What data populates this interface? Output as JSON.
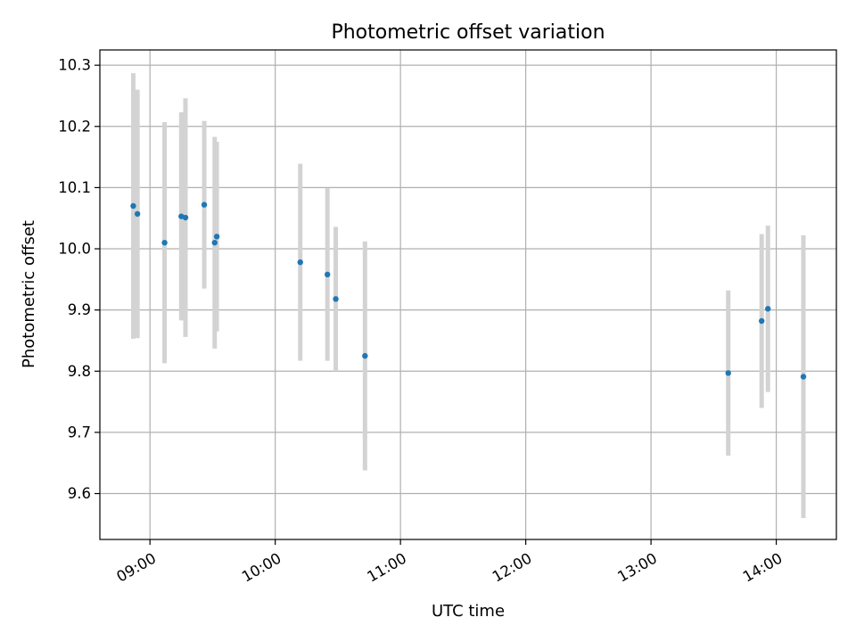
{
  "chart_data": {
    "type": "scatter",
    "title": "Photometric offset variation",
    "xlabel": "UTC time",
    "ylabel": "Photometric offset",
    "x_ticks": [
      "09:00",
      "10:00",
      "11:00",
      "12:00",
      "13:00",
      "14:00"
    ],
    "x_tick_hours": [
      9,
      10,
      11,
      12,
      13,
      14
    ],
    "y_ticks": [
      "9.6",
      "9.7",
      "9.8",
      "9.9",
      "10.0",
      "10.1",
      "10.2",
      "10.3"
    ],
    "y_tick_values": [
      9.6,
      9.7,
      9.8,
      9.9,
      10.0,
      10.1,
      10.2,
      10.3
    ],
    "xlim_hours": [
      8.6,
      14.48
    ],
    "ylim": [
      9.525,
      10.325
    ],
    "grid": true,
    "point_color": "#1f77b4",
    "errorbar_color": "#d3d3d3",
    "points": [
      {
        "time": "08:52",
        "y": 10.07,
        "err": 0.217
      },
      {
        "time": "08:54",
        "y": 10.057,
        "err": 0.203
      },
      {
        "time": "09:07",
        "y": 10.01,
        "err": 0.197
      },
      {
        "time": "09:15",
        "y": 10.053,
        "err": 0.17
      },
      {
        "time": "09:17",
        "y": 10.051,
        "err": 0.195
      },
      {
        "time": "09:26",
        "y": 10.072,
        "err": 0.137
      },
      {
        "time": "09:31",
        "y": 10.01,
        "err": 0.173
      },
      {
        "time": "09:32",
        "y": 10.02,
        "err": 0.155
      },
      {
        "time": "10:12",
        "y": 9.978,
        "err": 0.161
      },
      {
        "time": "10:25",
        "y": 9.958,
        "err": 0.141
      },
      {
        "time": "10:29",
        "y": 9.918,
        "err": 0.118
      },
      {
        "time": "10:43",
        "y": 9.825,
        "err": 0.187
      },
      {
        "time": "13:37",
        "y": 9.797,
        "err": 0.135
      },
      {
        "time": "13:53",
        "y": 9.882,
        "err": 0.142
      },
      {
        "time": "13:56",
        "y": 9.902,
        "err": 0.136
      },
      {
        "time": "14:13",
        "y": 9.791,
        "err": 0.231
      }
    ]
  }
}
